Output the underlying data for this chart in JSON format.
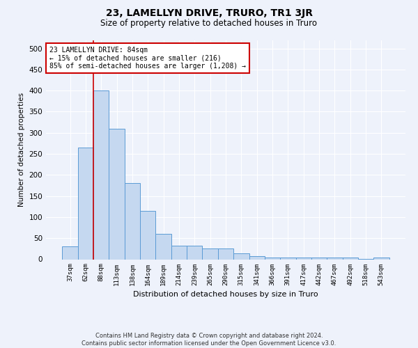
{
  "title": "23, LAMELLYN DRIVE, TRURO, TR1 3JR",
  "subtitle": "Size of property relative to detached houses in Truro",
  "xlabel": "Distribution of detached houses by size in Truro",
  "ylabel": "Number of detached properties",
  "categories": [
    "37sqm",
    "62sqm",
    "88sqm",
    "113sqm",
    "138sqm",
    "164sqm",
    "189sqm",
    "214sqm",
    "239sqm",
    "265sqm",
    "290sqm",
    "315sqm",
    "341sqm",
    "366sqm",
    "391sqm",
    "417sqm",
    "442sqm",
    "467sqm",
    "492sqm",
    "518sqm",
    "543sqm"
  ],
  "values": [
    30,
    265,
    400,
    310,
    180,
    115,
    60,
    33,
    33,
    25,
    25,
    14,
    7,
    4,
    4,
    4,
    4,
    4,
    4,
    1,
    4
  ],
  "bar_color": "#c5d8f0",
  "bar_edge_color": "#5b9bd5",
  "vline_color": "#cc0000",
  "vline_x": 1.5,
  "annotation_line1": "23 LAMELLYN DRIVE: 84sqm",
  "annotation_line2": "← 15% of detached houses are smaller (216)",
  "annotation_line3": "85% of semi-detached houses are larger (1,208) →",
  "annotation_box_facecolor": "#ffffff",
  "annotation_box_edgecolor": "#cc0000",
  "footnote_line1": "Contains HM Land Registry data © Crown copyright and database right 2024.",
  "footnote_line2": "Contains public sector information licensed under the Open Government Licence v3.0.",
  "bg_color": "#eef2fb",
  "plot_bg_color": "#eef2fb",
  "ylim": [
    0,
    520
  ],
  "yticks": [
    0,
    50,
    100,
    150,
    200,
    250,
    300,
    350,
    400,
    450,
    500
  ],
  "title_fontsize": 10,
  "subtitle_fontsize": 8.5
}
